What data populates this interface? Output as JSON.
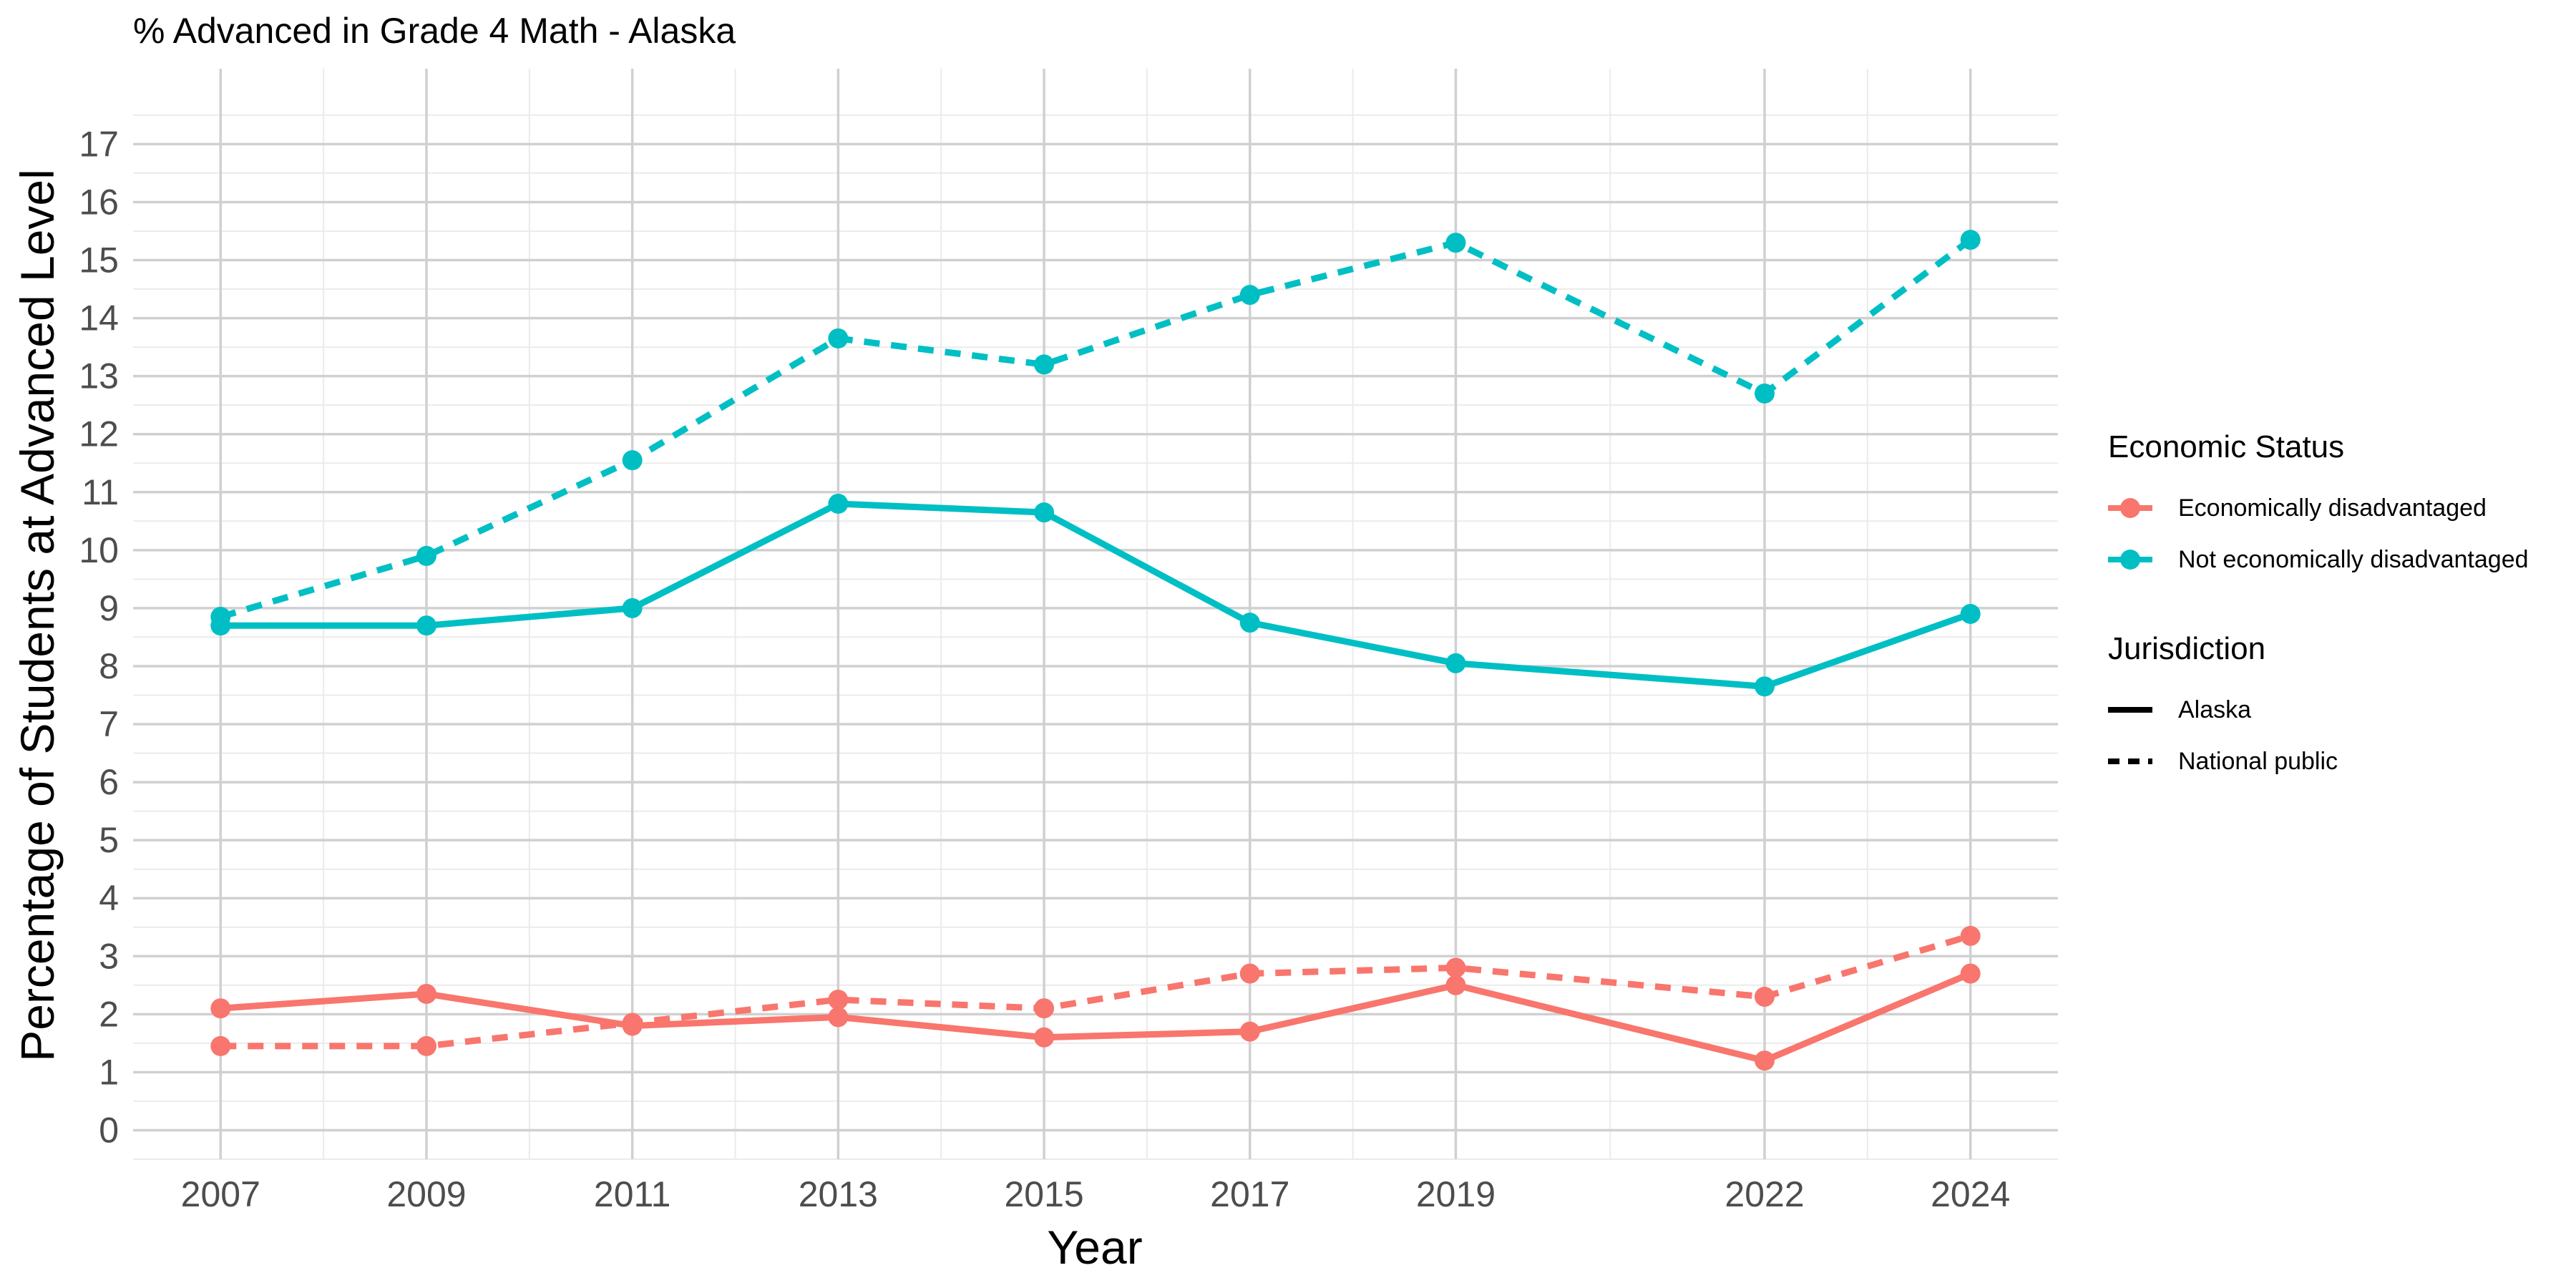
{
  "chart_data": {
    "type": "line",
    "title": "% Advanced in Grade 4 Math - Alaska",
    "xlabel": "Year",
    "ylabel": "Percentage of Students at Advanced Level",
    "x": [
      2007,
      2009,
      2011,
      2013,
      2015,
      2017,
      2019,
      2022,
      2024
    ],
    "ylim": [
      -0.5,
      18.3
    ],
    "y_ticks": [
      0,
      1,
      2,
      3,
      4,
      5,
      6,
      7,
      8,
      9,
      10,
      11,
      12,
      13,
      14,
      15,
      16,
      17
    ],
    "grid": true,
    "legend_position": "right",
    "series": [
      {
        "economic_status": "Economically disadvantaged",
        "jurisdiction": "Alaska",
        "color": "#F8766D",
        "dash": "solid",
        "values": [
          2.1,
          2.35,
          1.8,
          1.95,
          1.6,
          1.7,
          2.5,
          1.2,
          2.7
        ]
      },
      {
        "economic_status": "Economically disadvantaged",
        "jurisdiction": "National public",
        "color": "#F8766D",
        "dash": "dashed",
        "values": [
          1.45,
          1.45,
          1.85,
          2.25,
          2.1,
          2.7,
          2.8,
          2.3,
          3.35
        ]
      },
      {
        "economic_status": "Not economically disadvantaged",
        "jurisdiction": "Alaska",
        "color": "#00BFC4",
        "dash": "solid",
        "values": [
          8.7,
          8.7,
          9.0,
          10.8,
          10.65,
          8.75,
          8.05,
          7.65,
          8.9
        ]
      },
      {
        "economic_status": "Not economically disadvantaged",
        "jurisdiction": "National public",
        "color": "#00BFC4",
        "dash": "dashed",
        "values": [
          8.85,
          9.9,
          11.55,
          13.65,
          13.2,
          14.4,
          15.3,
          12.7,
          15.35
        ]
      }
    ],
    "legend": {
      "color_title": "Economic Status",
      "color_items": [
        {
          "label": "Economically disadvantaged",
          "color": "#F8766D"
        },
        {
          "label": "Not economically disadvantaged",
          "color": "#00BFC4"
        }
      ],
      "linetype_title": "Jurisdiction",
      "linetype_items": [
        {
          "label": "Alaska",
          "dash": "solid"
        },
        {
          "label": "National public",
          "dash": "dashed"
        }
      ]
    }
  }
}
